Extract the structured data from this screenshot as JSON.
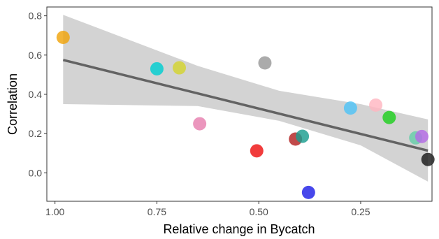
{
  "chart_data": {
    "type": "scatter",
    "xlabel": "Relative change in Bycatch",
    "ylabel": "Correlation",
    "x_reversed": true,
    "xlim": [
      1.02,
      0.075
    ],
    "ylim": [
      -0.145,
      0.845
    ],
    "x_ticks": [
      1.0,
      0.75,
      0.5,
      0.25
    ],
    "x_tick_labels": [
      "1.00",
      "0.75",
      "0.50",
      "0.25"
    ],
    "y_ticks": [
      0.0,
      0.2,
      0.4,
      0.6,
      0.8
    ],
    "y_tick_labels": [
      "0.0",
      "0.2",
      "0.4",
      "0.6",
      "0.8"
    ],
    "grid": false,
    "legend": "none",
    "points": [
      {
        "x": 0.98,
        "y": 0.69,
        "color": "#F0A30A"
      },
      {
        "x": 0.75,
        "y": 0.53,
        "color": "#00CED1"
      },
      {
        "x": 0.695,
        "y": 0.535,
        "color": "#D4D42F"
      },
      {
        "x": 0.645,
        "y": 0.25,
        "color": "#E67FAF"
      },
      {
        "x": 0.485,
        "y": 0.56,
        "color": "#999999"
      },
      {
        "x": 0.505,
        "y": 0.112,
        "color": "#EE1111"
      },
      {
        "x": 0.41,
        "y": 0.172,
        "color": "#B22222"
      },
      {
        "x": 0.393,
        "y": 0.186,
        "color": "#1A9E8F"
      },
      {
        "x": 0.378,
        "y": -0.1,
        "color": "#1E1EE6"
      },
      {
        "x": 0.275,
        "y": 0.33,
        "color": "#4FC3F7"
      },
      {
        "x": 0.213,
        "y": 0.345,
        "color": "#FFB6C1"
      },
      {
        "x": 0.18,
        "y": 0.282,
        "color": "#1ED01E"
      },
      {
        "x": 0.115,
        "y": 0.178,
        "color": "#66CDAA"
      },
      {
        "x": 0.1,
        "y": 0.185,
        "color": "#B56BE6"
      },
      {
        "x": 0.085,
        "y": 0.068,
        "color": "#1A1A1A"
      }
    ],
    "fit_line": {
      "x": [
        0.98,
        0.085
      ],
      "y": [
        0.575,
        0.113
      ],
      "color": "#636363"
    },
    "confidence_band": {
      "x": [
        0.98,
        0.65,
        0.45,
        0.25,
        0.085
      ],
      "lower": [
        0.35,
        0.34,
        0.265,
        0.14,
        -0.045
      ],
      "upper": [
        0.805,
        0.545,
        0.418,
        0.35,
        0.272
      ],
      "color": "#d3d3d3"
    }
  }
}
